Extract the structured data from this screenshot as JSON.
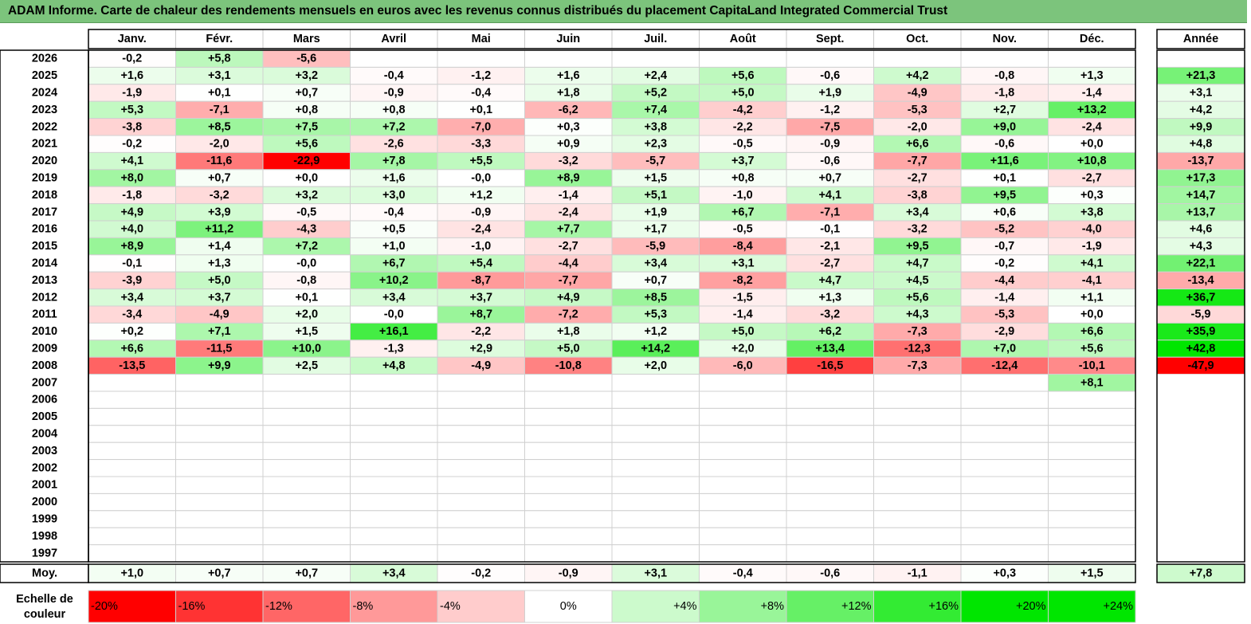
{
  "title": "ADAM Informe. Carte de chaleur des rendements mensuels en euros avec les revenus connus distribués du placement CapitaLand Integrated Commercial Trust",
  "chart_data": {
    "type": "heatmap",
    "months": [
      "Janv.",
      "Févr.",
      "Mars",
      "Avril",
      "Mai",
      "Juin",
      "Juil.",
      "Août",
      "Sept.",
      "Oct.",
      "Nov.",
      "Déc."
    ],
    "year_header": "Année",
    "avg_label": "Moy.",
    "rows": [
      {
        "year": "2026",
        "values": [
          "-0,2",
          "+5,8",
          "-5,6",
          "",
          "",
          "",
          "",
          "",
          "",
          "",
          "",
          ""
        ],
        "annual": ""
      },
      {
        "year": "2025",
        "values": [
          "+1,6",
          "+3,1",
          "+3,2",
          "-0,4",
          "-1,2",
          "+1,6",
          "+2,4",
          "+5,6",
          "-0,6",
          "+4,2",
          "-0,8",
          "+1,3"
        ],
        "annual": "+21,3"
      },
      {
        "year": "2024",
        "values": [
          "-1,9",
          "+0,1",
          "+0,7",
          "-0,9",
          "-0,4",
          "+1,8",
          "+5,2",
          "+5,0",
          "+1,9",
          "-4,9",
          "-1,8",
          "-1,4"
        ],
        "annual": "+3,1"
      },
      {
        "year": "2023",
        "values": [
          "+5,3",
          "-7,1",
          "+0,8",
          "+0,8",
          "+0,1",
          "-6,2",
          "+7,4",
          "-4,2",
          "-1,2",
          "-5,3",
          "+2,7",
          "+13,2"
        ],
        "annual": "+4,2"
      },
      {
        "year": "2022",
        "values": [
          "-3,8",
          "+8,5",
          "+7,5",
          "+7,2",
          "-7,0",
          "+0,3",
          "+3,8",
          "-2,2",
          "-7,5",
          "-2,0",
          "+9,0",
          "-2,4"
        ],
        "annual": "+9,9"
      },
      {
        "year": "2021",
        "values": [
          "-0,2",
          "-2,0",
          "+5,6",
          "-2,6",
          "-3,3",
          "+0,9",
          "+2,3",
          "-0,5",
          "-0,9",
          "+6,6",
          "-0,6",
          "+0,0"
        ],
        "annual": "+4,8"
      },
      {
        "year": "2020",
        "values": [
          "+4,1",
          "-11,6",
          "-22,9",
          "+7,8",
          "+5,5",
          "-3,2",
          "-5,7",
          "+3,7",
          "-0,6",
          "-7,7",
          "+11,6",
          "+10,8"
        ],
        "annual": "-13,7"
      },
      {
        "year": "2019",
        "values": [
          "+8,0",
          "+0,7",
          "+0,0",
          "+1,6",
          "-0,0",
          "+8,9",
          "+1,5",
          "+0,8",
          "+0,7",
          "-2,7",
          "+0,1",
          "-2,7"
        ],
        "annual": "+17,3"
      },
      {
        "year": "2018",
        "values": [
          "-1,8",
          "-3,2",
          "+3,2",
          "+3,0",
          "+1,2",
          "-1,4",
          "+5,1",
          "-1,0",
          "+4,1",
          "-3,8",
          "+9,5",
          "+0,3"
        ],
        "annual": "+14,7"
      },
      {
        "year": "2017",
        "values": [
          "+4,9",
          "+3,9",
          "-0,5",
          "-0,4",
          "-0,9",
          "-2,4",
          "+1,9",
          "+6,7",
          "-7,1",
          "+3,4",
          "+0,6",
          "+3,8"
        ],
        "annual": "+13,7"
      },
      {
        "year": "2016",
        "values": [
          "+4,0",
          "+11,2",
          "-4,3",
          "+0,5",
          "-2,4",
          "+7,7",
          "+1,7",
          "-0,5",
          "-0,1",
          "-3,2",
          "-5,2",
          "-4,0"
        ],
        "annual": "+4,6"
      },
      {
        "year": "2015",
        "values": [
          "+8,9",
          "+1,4",
          "+7,2",
          "+1,0",
          "-1,0",
          "-2,7",
          "-5,9",
          "-8,4",
          "-2,1",
          "+9,5",
          "-0,7",
          "-1,9"
        ],
        "annual": "+4,3"
      },
      {
        "year": "2014",
        "values": [
          "-0,1",
          "+1,3",
          "-0,0",
          "+6,7",
          "+5,4",
          "-4,4",
          "+3,4",
          "+3,1",
          "-2,7",
          "+4,7",
          "-0,2",
          "+4,1"
        ],
        "annual": "+22,1"
      },
      {
        "year": "2013",
        "values": [
          "-3,9",
          "+5,0",
          "-0,8",
          "+10,2",
          "-8,7",
          "-7,7",
          "+0,7",
          "-8,2",
          "+4,7",
          "+4,5",
          "-4,4",
          "-4,1"
        ],
        "annual": "-13,4"
      },
      {
        "year": "2012",
        "values": [
          "+3,4",
          "+3,7",
          "+0,1",
          "+3,4",
          "+3,7",
          "+4,9",
          "+8,5",
          "-1,5",
          "+1,3",
          "+5,6",
          "-1,4",
          "+1,1"
        ],
        "annual": "+36,7"
      },
      {
        "year": "2011",
        "values": [
          "-3,4",
          "-4,9",
          "+2,0",
          "-0,0",
          "+8,7",
          "-7,2",
          "+5,3",
          "-1,4",
          "-3,2",
          "+4,3",
          "-5,3",
          "+0,0"
        ],
        "annual": "-5,9"
      },
      {
        "year": "2010",
        "values": [
          "+0,2",
          "+7,1",
          "+1,5",
          "+16,1",
          "-2,2",
          "+1,8",
          "+1,2",
          "+5,0",
          "+6,2",
          "-7,3",
          "-2,9",
          "+6,6"
        ],
        "annual": "+35,9"
      },
      {
        "year": "2009",
        "values": [
          "+6,6",
          "-11,5",
          "+10,0",
          "-1,3",
          "+2,9",
          "+5,0",
          "+14,2",
          "+2,0",
          "+13,4",
          "-12,3",
          "+7,0",
          "+5,6"
        ],
        "annual": "+42,8"
      },
      {
        "year": "2008",
        "values": [
          "-13,5",
          "+9,9",
          "+2,5",
          "+4,8",
          "-4,9",
          "-10,8",
          "+2,0",
          "-6,0",
          "-16,5",
          "-7,3",
          "-12,4",
          "-10,1"
        ],
        "annual": "-47,9"
      },
      {
        "year": "2007",
        "values": [
          "",
          "",
          "",
          "",
          "",
          "",
          "",
          "",
          "",
          "",
          "",
          "+8,1"
        ],
        "annual": ""
      },
      {
        "year": "2006",
        "values": [
          "",
          "",
          "",
          "",
          "",
          "",
          "",
          "",
          "",
          "",
          "",
          ""
        ],
        "annual": ""
      },
      {
        "year": "2005",
        "values": [
          "",
          "",
          "",
          "",
          "",
          "",
          "",
          "",
          "",
          "",
          "",
          ""
        ],
        "annual": ""
      },
      {
        "year": "2004",
        "values": [
          "",
          "",
          "",
          "",
          "",
          "",
          "",
          "",
          "",
          "",
          "",
          ""
        ],
        "annual": ""
      },
      {
        "year": "2003",
        "values": [
          "",
          "",
          "",
          "",
          "",
          "",
          "",
          "",
          "",
          "",
          "",
          ""
        ],
        "annual": ""
      },
      {
        "year": "2002",
        "values": [
          "",
          "",
          "",
          "",
          "",
          "",
          "",
          "",
          "",
          "",
          "",
          ""
        ],
        "annual": ""
      },
      {
        "year": "2001",
        "values": [
          "",
          "",
          "",
          "",
          "",
          "",
          "",
          "",
          "",
          "",
          "",
          ""
        ],
        "annual": ""
      },
      {
        "year": "2000",
        "values": [
          "",
          "",
          "",
          "",
          "",
          "",
          "",
          "",
          "",
          "",
          "",
          ""
        ],
        "annual": ""
      },
      {
        "year": "1999",
        "values": [
          "",
          "",
          "",
          "",
          "",
          "",
          "",
          "",
          "",
          "",
          "",
          ""
        ],
        "annual": ""
      },
      {
        "year": "1998",
        "values": [
          "",
          "",
          "",
          "",
          "",
          "",
          "",
          "",
          "",
          "",
          "",
          ""
        ],
        "annual": ""
      },
      {
        "year": "1997",
        "values": [
          "",
          "",
          "",
          "",
          "",
          "",
          "",
          "",
          "",
          "",
          "",
          ""
        ],
        "annual": ""
      }
    ],
    "averages": [
      "+1,0",
      "+0,7",
      "+0,7",
      "+3,4",
      "-0,2",
      "-0,9",
      "+3,1",
      "-0,4",
      "-0,6",
      "-1,1",
      "+0,3",
      "+1,5"
    ],
    "average_annual": "+7,8",
    "scale_label": "Echelle de couleur",
    "scale": [
      "-20%",
      "-16%",
      "-12%",
      "-8%",
      "-4%",
      "0%",
      "+4%",
      "+8%",
      "+12%",
      "+16%",
      "+20%",
      "+24%"
    ],
    "colors": {
      "strong_negative": "#ff0000",
      "neutral": "#ffffff",
      "strong_positive": "#00e600",
      "title_bg": "#7cc47c"
    }
  }
}
